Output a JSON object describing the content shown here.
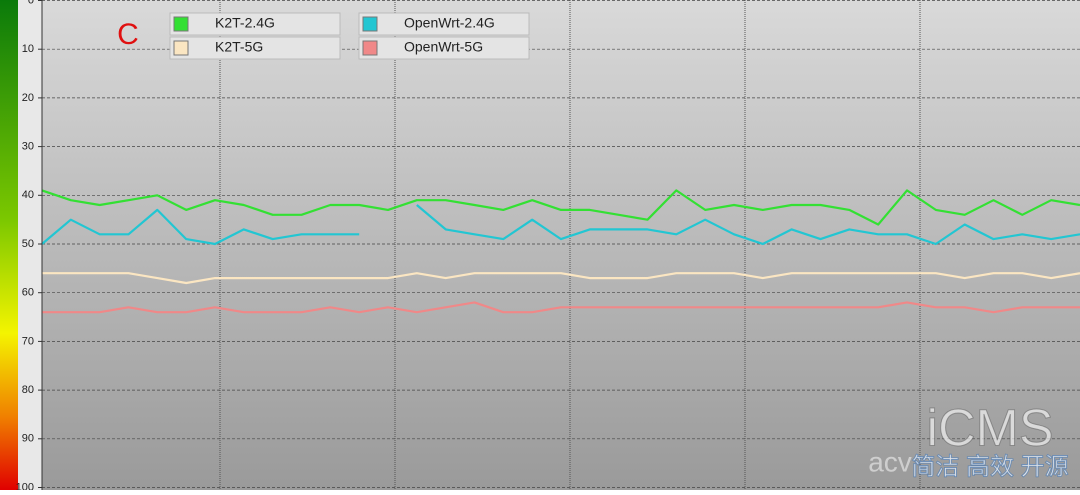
{
  "chart_data": {
    "type": "line",
    "annotation": "C",
    "watermark": {
      "logo": "iCMS",
      "tagline": "简洁 高效 开源",
      "site": "acv"
    },
    "ylim": [
      0,
      100
    ],
    "y_inverted": true,
    "yticks": [
      0,
      10,
      20,
      30,
      40,
      50,
      60,
      70,
      80,
      90,
      100
    ],
    "grid": true,
    "series": [
      {
        "name": "K2T-2.4G",
        "color": "#33e033",
        "values": [
          39,
          41,
          42,
          41,
          40,
          43,
          41,
          42,
          44,
          44,
          42,
          42,
          43,
          41,
          41,
          42,
          43,
          41,
          43,
          43,
          44,
          45,
          39,
          43,
          42,
          43,
          42,
          42,
          43,
          46,
          39,
          43,
          44,
          41,
          44,
          41,
          42
        ]
      },
      {
        "name": "K2T-5G",
        "color": "#fbe6c2",
        "values": [
          56,
          56,
          56,
          56,
          57,
          58,
          57,
          57,
          57,
          57,
          57,
          57,
          57,
          56,
          57,
          56,
          56,
          56,
          56,
          57,
          57,
          57,
          56,
          56,
          56,
          57,
          56,
          56,
          56,
          56,
          56,
          56,
          57,
          56,
          56,
          57,
          56
        ]
      },
      {
        "name": "OpenWrt-2.4G",
        "color": "#22c6d2",
        "values": [
          50,
          45,
          48,
          48,
          43,
          49,
          50,
          47,
          49,
          48,
          48,
          48,
          null,
          42,
          47,
          48,
          49,
          45,
          49,
          47,
          47,
          47,
          48,
          45,
          48,
          50,
          47,
          49,
          47,
          48,
          48,
          50,
          46,
          49,
          48,
          49,
          48
        ]
      },
      {
        "name": "OpenWrt-5G",
        "color": "#f08888",
        "values": [
          64,
          64,
          64,
          63,
          64,
          64,
          63,
          64,
          64,
          64,
          63,
          64,
          63,
          64,
          63,
          62,
          64,
          64,
          63,
          63,
          63,
          63,
          63,
          63,
          63,
          63,
          63,
          63,
          63,
          63,
          62,
          63,
          63,
          64,
          63,
          63,
          63
        ]
      }
    ]
  }
}
